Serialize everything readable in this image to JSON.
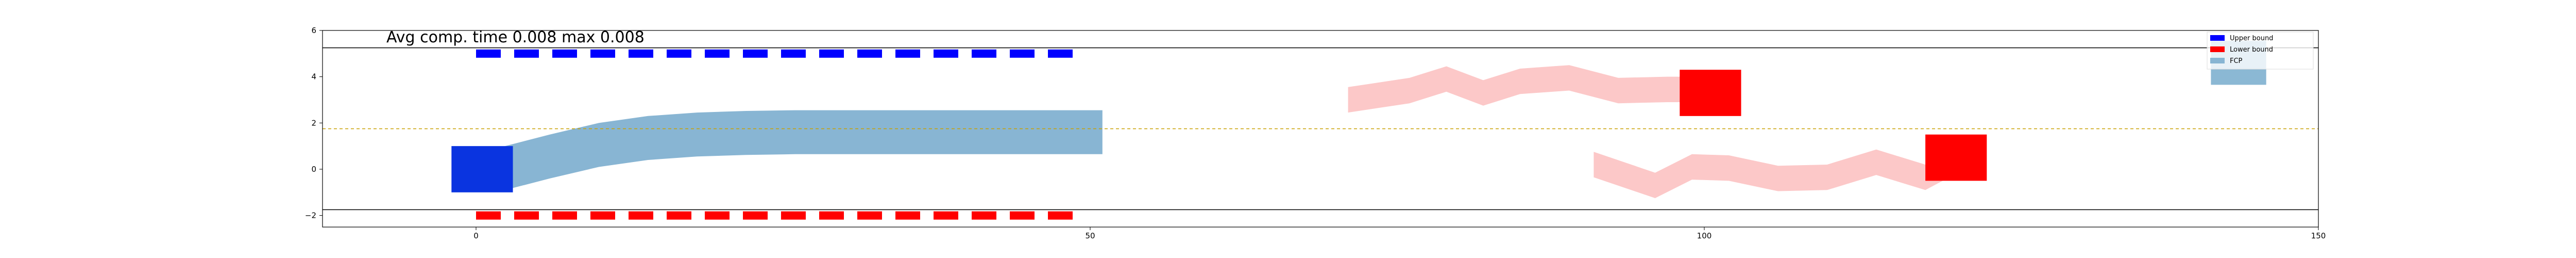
{
  "chart_data": {
    "type": "line",
    "title": "Avg comp. time 0.008 max 0.008",
    "xlabel": "",
    "ylabel": "",
    "xlim": [
      -12.5,
      150
    ],
    "ylim": [
      -2.5,
      6
    ],
    "x_ticks": [
      0,
      50,
      100,
      150
    ],
    "y_ticks": [
      -2,
      0,
      2,
      4,
      6
    ],
    "grid": false,
    "legend_position": "top-right",
    "boundaries": {
      "upper_y": 5.25,
      "lower_y": -1.75,
      "reference_y": 1.75
    },
    "series": [
      {
        "name": "Upper bound",
        "style": "dashed-thick",
        "color": "#0000ff",
        "x": [
          0,
          49
        ],
        "y": [
          5.0,
          5.0
        ]
      },
      {
        "name": "Lower bound",
        "style": "dashed-thick",
        "color": "#ff0000",
        "x": [
          0,
          49
        ],
        "y": [
          -2.0,
          -2.0
        ]
      },
      {
        "name": "FCP",
        "style": "band",
        "color": "#88b5d3",
        "x": [
          2,
          6,
          10,
          14,
          18,
          22,
          26,
          30,
          34,
          38,
          42,
          46,
          51
        ],
        "y": [
          0.0,
          0.55,
          1.05,
          1.35,
          1.5,
          1.57,
          1.6,
          1.6,
          1.6,
          1.6,
          1.6,
          1.6,
          1.6
        ],
        "half_width": 0.95
      }
    ],
    "obstacle_paths": [
      {
        "color": "#fcc8c8",
        "x": [
          71,
          76,
          79,
          82,
          85,
          89,
          93,
          97,
          101
        ],
        "y": [
          3.0,
          3.4,
          3.9,
          3.3,
          3.8,
          3.95,
          3.4,
          3.45,
          3.45
        ],
        "half_width": 0.55
      },
      {
        "color": "#fcc8c8",
        "x": [
          91,
          96,
          99,
          102,
          106,
          110,
          114,
          118,
          121
        ],
        "y": [
          0.2,
          -0.7,
          0.1,
          0.05,
          -0.4,
          -0.35,
          0.3,
          -0.35,
          0.5
        ],
        "half_width": 0.55
      }
    ],
    "vehicles": [
      {
        "name": "ego",
        "color": "#0a34e0",
        "cx": 0.5,
        "cy": 0.0,
        "w": 5,
        "h": 2
      },
      {
        "name": "obstacle-1",
        "color": "#ff0000",
        "cx": 100.5,
        "cy": 3.3,
        "w": 5,
        "h": 2
      },
      {
        "name": "obstacle-2",
        "color": "#ff0000",
        "cx": 120.5,
        "cy": 0.5,
        "w": 5,
        "h": 2
      },
      {
        "name": "legend-swatch",
        "color": "#8bb8d4",
        "cx": 143.5,
        "cy": 4.6,
        "w": 4.5,
        "h": 1.9
      }
    ]
  }
}
